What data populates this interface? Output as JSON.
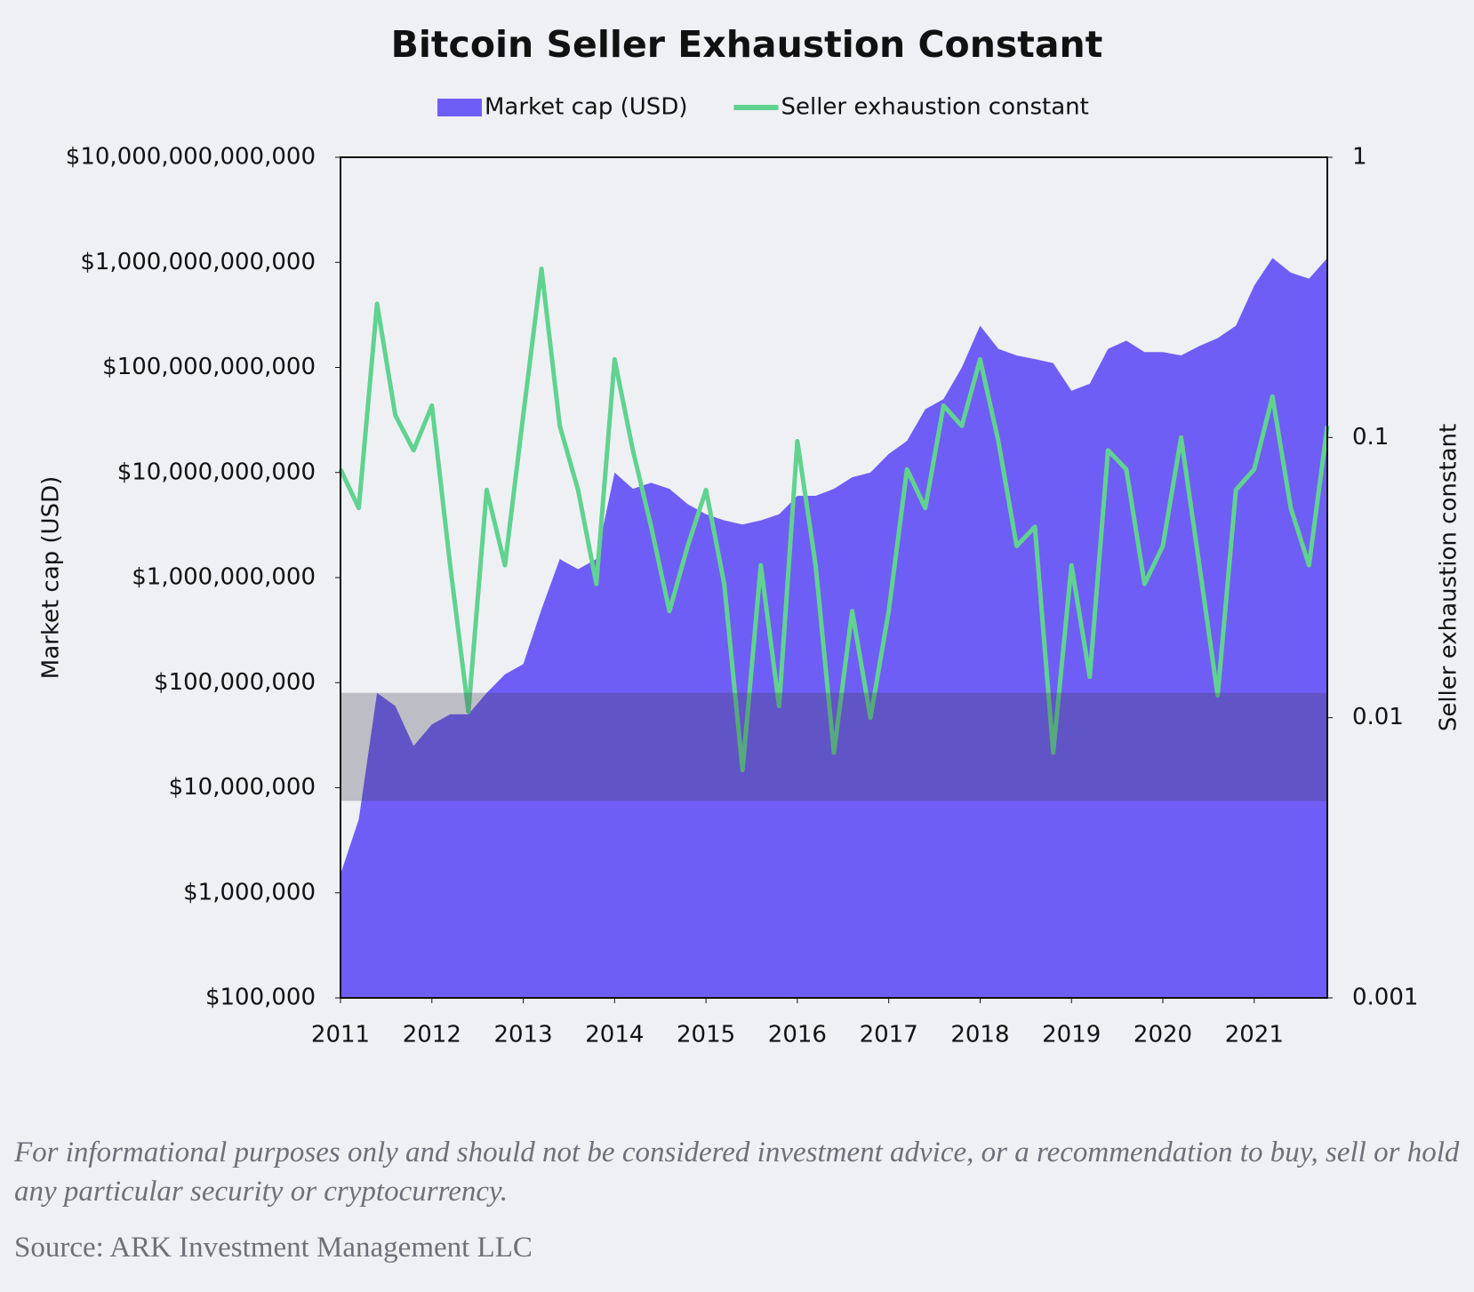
{
  "chart_data": {
    "type": "area_line",
    "title": "Bitcoin Seller Exhaustion Constant",
    "y_label": "Market cap (USD)",
    "y2_label": "Seller exhaustion constant",
    "x": [
      2011.0,
      2011.2,
      2011.4,
      2011.6,
      2011.8,
      2012.0,
      2012.2,
      2012.4,
      2012.6,
      2012.8,
      2013.0,
      2013.2,
      2013.4,
      2013.6,
      2013.8,
      2014.0,
      2014.2,
      2014.4,
      2014.6,
      2014.8,
      2015.0,
      2015.2,
      2015.4,
      2015.6,
      2015.8,
      2016.0,
      2016.2,
      2016.4,
      2016.6,
      2016.8,
      2017.0,
      2017.2,
      2017.4,
      2017.6,
      2017.8,
      2018.0,
      2018.2,
      2018.4,
      2018.6,
      2018.8,
      2019.0,
      2019.2,
      2019.4,
      2019.6,
      2019.8,
      2020.0,
      2020.2,
      2020.4,
      2020.6,
      2020.8,
      2021.0,
      2021.2,
      2021.4,
      2021.6,
      2021.8
    ],
    "series": [
      {
        "name": "Market cap (USD)",
        "color": "#6f5ef5",
        "mark": "area",
        "values": [
          1500000,
          5000000,
          80000000,
          60000000,
          25000000,
          40000000,
          50000000,
          50000000,
          80000000,
          120000000,
          150000000,
          500000000,
          1500000000,
          1200000000,
          1500000000,
          10000000000,
          7000000000,
          8000000000,
          7000000000,
          5000000000,
          4000000000,
          3500000000,
          3200000000,
          3500000000,
          4000000000,
          6000000000,
          6000000000,
          7000000000,
          9000000000,
          10000000000,
          15000000000,
          20000000000,
          40000000000,
          50000000000,
          100000000000,
          250000000000,
          150000000000,
          130000000000,
          120000000000,
          110000000000,
          60000000000,
          70000000000,
          150000000000,
          180000000000,
          140000000000,
          140000000000,
          130000000000,
          160000000000,
          190000000000,
          250000000000,
          600000000000,
          1100000000000,
          800000000000,
          700000000000,
          1100000000000
        ]
      },
      {
        "name": "Seller exhaustion constant",
        "color": "#5fd38f",
        "mark": "line",
        "axis": "y2",
        "values": [
          0.077,
          0.056,
          0.3,
          0.12,
          0.09,
          0.13,
          0.035,
          0.0105,
          0.065,
          0.035,
          0.12,
          0.4,
          0.11,
          0.065,
          0.03,
          0.19,
          0.09,
          0.048,
          0.024,
          0.041,
          0.065,
          0.03,
          0.0065,
          0.035,
          0.011,
          0.097,
          0.035,
          0.0075,
          0.024,
          0.01,
          0.024,
          0.077,
          0.056,
          0.13,
          0.11,
          0.19,
          0.097,
          0.041,
          0.048,
          0.0075,
          0.035,
          0.014,
          0.09,
          0.077,
          0.03,
          0.041,
          0.1,
          0.035,
          0.012,
          0.065,
          0.077,
          0.14,
          0.056,
          0.035,
          0.11
        ]
      }
    ],
    "highlight_range": [
      7500000,
      80000000
    ],
    "highlight_color": "rgba(60,60,75,0.28)",
    "log_y": true,
    "log_y2": true,
    "xlim": [
      2011,
      2021.8
    ],
    "xticks": [
      2011,
      2012,
      2013,
      2014,
      2015,
      2016,
      2017,
      2018,
      2019,
      2020,
      2021
    ],
    "ylim": [
      100000,
      10000000000000
    ],
    "yticks": [
      {
        "value": 100000,
        "label": "$100,000"
      },
      {
        "value": 1000000,
        "label": "$1,000,000"
      },
      {
        "value": 10000000,
        "label": "$10,000,000"
      },
      {
        "value": 100000000,
        "label": "$100,000,000"
      },
      {
        "value": 1000000000,
        "label": "$1,000,000,000"
      },
      {
        "value": 10000000000,
        "label": "$10,000,000,000"
      },
      {
        "value": 100000000000,
        "label": "$100,000,000,000"
      },
      {
        "value": 1000000000000,
        "label": "$1,000,000,000,000"
      },
      {
        "value": 10000000000000,
        "label": "$10,000,000,000,000"
      }
    ],
    "y2lim": [
      0.001,
      1
    ],
    "y2ticks": [
      0.001,
      0.01,
      0.1,
      1
    ],
    "legend": "top",
    "note": "For informational purposes only and should not be considered investment advice, or a recommendation to buy, sell or hold any particular security or cryptocurrency.",
    "source": "Source: ARK Investment Management LLC"
  }
}
